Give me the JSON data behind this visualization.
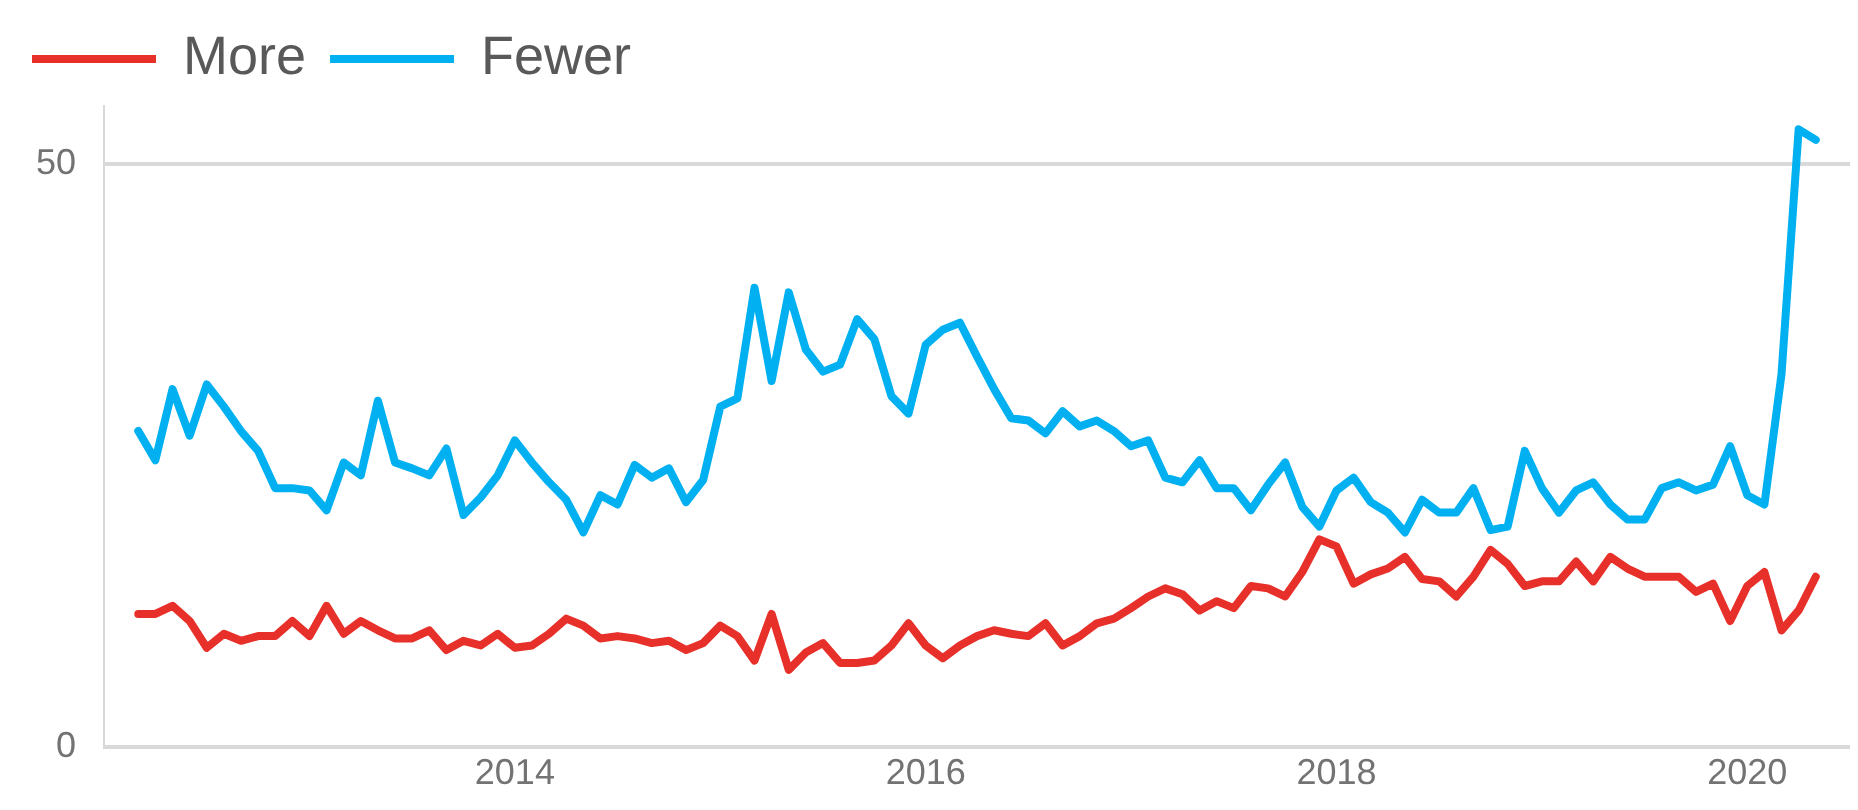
{
  "chart_data": {
    "type": "line",
    "legend": "top left",
    "grid": "y",
    "marker": "none",
    "line_style": "solid",
    "x": [
      "2012-03",
      "2012-04",
      "2012-05",
      "2012-06",
      "2012-07",
      "2012-08",
      "2012-09",
      "2012-10",
      "2012-11",
      "2012-12",
      "2013-01",
      "2013-02",
      "2013-03",
      "2013-04",
      "2013-05",
      "2013-06",
      "2013-07",
      "2013-08",
      "2013-09",
      "2013-10",
      "2013-11",
      "2013-12",
      "2014-01",
      "2014-02",
      "2014-03",
      "2014-04",
      "2014-05",
      "2014-06",
      "2014-07",
      "2014-08",
      "2014-09",
      "2014-10",
      "2014-11",
      "2014-12",
      "2015-01",
      "2015-02",
      "2015-03",
      "2015-04",
      "2015-05",
      "2015-06",
      "2015-07",
      "2015-08",
      "2015-09",
      "2015-10",
      "2015-11",
      "2015-12",
      "2016-01",
      "2016-02",
      "2016-03",
      "2016-04",
      "2016-05",
      "2016-06",
      "2016-07",
      "2016-08",
      "2016-09",
      "2016-10",
      "2016-11",
      "2016-12",
      "2017-01",
      "2017-02",
      "2017-03",
      "2017-04",
      "2017-05",
      "2017-06",
      "2017-07",
      "2017-08",
      "2017-09",
      "2017-10",
      "2017-11",
      "2017-12",
      "2018-01",
      "2018-02",
      "2018-03",
      "2018-04",
      "2018-05",
      "2018-06",
      "2018-07",
      "2018-08",
      "2018-09",
      "2018-10",
      "2018-11",
      "2018-12",
      "2019-01",
      "2019-02",
      "2019-03",
      "2019-04",
      "2019-05",
      "2019-06",
      "2019-07",
      "2019-08",
      "2019-09",
      "2019-10",
      "2019-11",
      "2019-12",
      "2020-01",
      "2020-02",
      "2020-03",
      "2020-04",
      "2020-05"
    ],
    "xlim": [
      "2012-01",
      "2020-07"
    ],
    "xticks": [
      "2014",
      "2016",
      "2018",
      "2020"
    ],
    "ylim": [
      0,
      55
    ],
    "yticks": [
      0,
      50
    ],
    "series": [
      {
        "name": "More",
        "color": "#e8302a",
        "values": [
          11.4,
          11.4,
          12.1,
          10.8,
          8.5,
          9.7,
          9.1,
          9.5,
          9.5,
          10.8,
          9.5,
          12.1,
          9.7,
          10.8,
          10.0,
          9.3,
          9.3,
          10.0,
          8.3,
          9.1,
          8.7,
          9.7,
          8.5,
          8.7,
          9.7,
          11.0,
          10.4,
          9.3,
          9.5,
          9.3,
          8.9,
          9.1,
          8.3,
          8.9,
          10.4,
          9.5,
          7.4,
          11.4,
          6.6,
          8.1,
          8.9,
          7.2,
          7.2,
          7.4,
          8.7,
          10.6,
          8.7,
          7.6,
          8.7,
          9.5,
          10.0,
          9.7,
          9.5,
          10.6,
          8.7,
          9.5,
          10.6,
          11.0,
          11.9,
          12.9,
          13.6,
          13.1,
          11.7,
          12.5,
          11.9,
          13.8,
          13.6,
          12.9,
          15.0,
          17.8,
          17.2,
          14.0,
          14.8,
          15.3,
          16.3,
          14.4,
          14.2,
          12.9,
          14.6,
          16.9,
          15.7,
          13.8,
          14.2,
          14.2,
          15.9,
          14.2,
          16.3,
          15.3,
          14.6,
          14.6,
          14.6,
          13.3,
          14.0,
          10.8,
          13.8,
          15.0,
          10.0,
          11.7,
          14.6
        ]
      },
      {
        "name": "Fewer",
        "color": "#00b0f0",
        "values": [
          27.1,
          24.6,
          30.7,
          26.7,
          31.1,
          29.2,
          27.1,
          25.4,
          22.2,
          22.2,
          22.0,
          20.3,
          24.4,
          23.3,
          29.7,
          24.4,
          23.9,
          23.3,
          25.6,
          19.9,
          21.4,
          23.3,
          26.3,
          24.4,
          22.7,
          21.2,
          18.4,
          21.6,
          20.8,
          24.2,
          23.1,
          23.9,
          21.0,
          22.9,
          29.2,
          29.9,
          39.4,
          31.4,
          39.0,
          34.1,
          32.2,
          32.8,
          36.7,
          35.0,
          30.1,
          28.6,
          34.5,
          35.8,
          36.4,
          33.5,
          30.7,
          28.2,
          28.0,
          26.9,
          28.8,
          27.5,
          28.0,
          27.1,
          25.8,
          26.3,
          23.1,
          22.7,
          24.6,
          22.2,
          22.2,
          20.3,
          22.5,
          24.4,
          20.6,
          18.9,
          22.0,
          23.1,
          21.0,
          20.1,
          18.4,
          21.2,
          20.1,
          20.1,
          22.2,
          18.6,
          18.9,
          25.4,
          22.2,
          20.1,
          22.0,
          22.7,
          20.8,
          19.5,
          19.5,
          22.2,
          22.7,
          22.0,
          22.5,
          25.8,
          21.6,
          20.8,
          32.0,
          53.0,
          52.1
        ]
      }
    ]
  }
}
